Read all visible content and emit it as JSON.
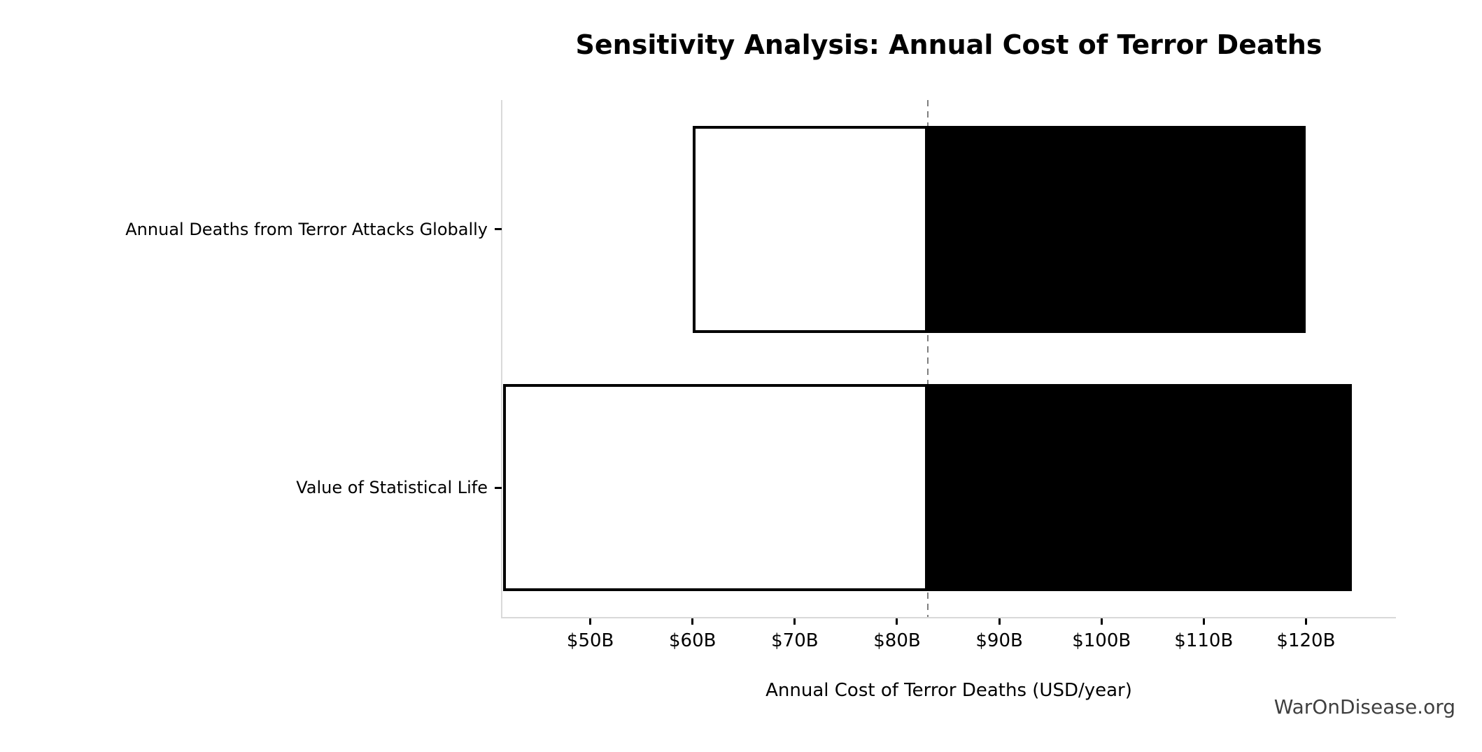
{
  "chart_data": {
    "type": "bar",
    "subtype": "tornado-sensitivity",
    "orientation": "horizontal",
    "title": "Sensitivity Analysis: Annual Cost of Terror Deaths",
    "xlabel": "Annual Cost of Terror Deaths (USD/year)",
    "watermark": "WarOnDisease.org",
    "unit": "USD billions per year",
    "baseline": 83,
    "xlim": [
      41.4,
      128.8
    ],
    "grid": false,
    "legend": "none",
    "categories": [
      "Annual Deaths from Terror Attacks Globally",
      "Value of Statistical Life"
    ],
    "series": [
      {
        "name": "Annual Deaths from Terror Attacks Globally",
        "low": 60,
        "high": 120
      },
      {
        "name": "Value of Statistical Life",
        "low": 41.5,
        "high": 124.5
      }
    ],
    "x_ticks": [
      {
        "value": 50,
        "label": "$50B"
      },
      {
        "value": 60,
        "label": "$60B"
      },
      {
        "value": 70,
        "label": "$70B"
      },
      {
        "value": 80,
        "label": "$80B"
      },
      {
        "value": 90,
        "label": "$90B"
      },
      {
        "value": 100,
        "label": "$100B"
      },
      {
        "value": 110,
        "label": "$110B"
      },
      {
        "value": 120,
        "label": "$120B"
      }
    ],
    "colors": {
      "low_segment_fill": "#ffffff",
      "high_segment_fill": "#000000",
      "bar_edge": "#000000",
      "baseline_line": "#7f7f7f",
      "axis_spine": "#d9d9d9",
      "tick": "#000000",
      "watermark": "#3f3f3f"
    }
  }
}
